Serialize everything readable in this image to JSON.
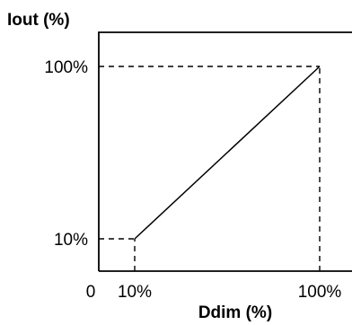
{
  "chart_data": {
    "type": "line",
    "title": "",
    "xlabel": "Ddim (%)",
    "ylabel": "Iout (%)",
    "origin_label": "0",
    "x_tick_labels": [
      "10%",
      "100%"
    ],
    "y_tick_labels": [
      "10%",
      "100%"
    ],
    "x_ticks": [
      10,
      100
    ],
    "y_ticks": [
      10,
      100
    ],
    "series": [
      {
        "x": [
          10,
          100
        ],
        "y": [
          10,
          100
        ]
      }
    ],
    "reference_lines": [
      {
        "from": [
          0,
          10
        ],
        "to": [
          10,
          10
        ]
      },
      {
        "from": [
          10,
          0
        ],
        "to": [
          10,
          10
        ]
      },
      {
        "from": [
          0,
          100
        ],
        "to": [
          100,
          100
        ]
      },
      {
        "from": [
          100,
          0
        ],
        "to": [
          100,
          100
        ]
      }
    ],
    "grid": false
  }
}
